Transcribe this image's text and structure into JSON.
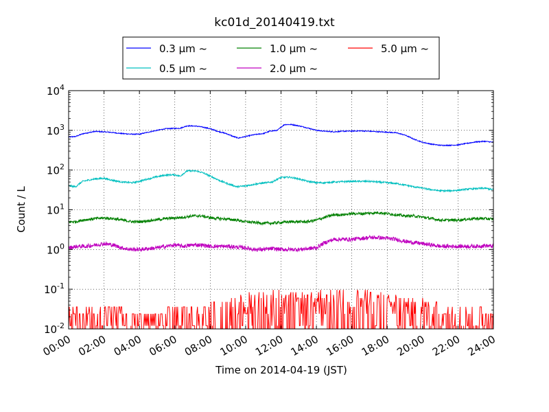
{
  "chart_data": {
    "type": "line",
    "title": "kc01d_20140419.txt",
    "xlabel": "Time on 2014-04-19 (JST)",
    "ylabel": "Count / L",
    "x_range_hours": [
      0,
      24
    ],
    "x_ticks": [
      "00:00",
      "02:00",
      "04:00",
      "06:00",
      "08:00",
      "10:00",
      "12:00",
      "14:00",
      "16:00",
      "18:00",
      "20:00",
      "22:00",
      "24:00"
    ],
    "y_scale": "log",
    "y_range": [
      0.01,
      10000
    ],
    "y_ticks": [
      {
        "base": "10",
        "exp": "-2",
        "value": 0.01
      },
      {
        "base": "10",
        "exp": "-1",
        "value": 0.1
      },
      {
        "base": "10",
        "exp": "0",
        "value": 1
      },
      {
        "base": "10",
        "exp": "1",
        "value": 10
      },
      {
        "base": "10",
        "exp": "2",
        "value": 100
      },
      {
        "base": "10",
        "exp": "3",
        "value": 1000
      },
      {
        "base": "10",
        "exp": "4",
        "value": 10000
      }
    ],
    "grid": true,
    "legend_placement": "top-center-outside",
    "series": [
      {
        "name": "0.3 μm ~",
        "color": "#0000ff",
        "noise": 0.012,
        "spikes": false,
        "x": [
          0,
          0.4,
          0.8,
          1.5,
          2.3,
          3.0,
          3.6,
          4.0,
          4.5,
          5.0,
          5.5,
          6.0,
          6.3,
          6.7,
          7.2,
          7.6,
          8.0,
          8.4,
          8.9,
          9.3,
          9.6,
          10.0,
          10.5,
          11.0,
          11.4,
          11.8,
          12.2,
          12.6,
          13.0,
          13.5,
          14.0,
          14.5,
          15.0,
          15.5,
          16.0,
          16.5,
          17.0,
          17.5,
          18.0,
          18.5,
          19.0,
          19.5,
          20.0,
          20.5,
          21.0,
          21.5,
          22.0,
          22.5,
          23.0,
          23.5,
          24.0
        ],
        "y": [
          680,
          700,
          820,
          940,
          900,
          830,
          800,
          800,
          900,
          1000,
          1100,
          1120,
          1130,
          1300,
          1280,
          1200,
          1100,
          950,
          830,
          700,
          640,
          700,
          780,
          830,
          960,
          1000,
          1400,
          1400,
          1300,
          1150,
          1000,
          950,
          920,
          950,
          960,
          970,
          950,
          920,
          900,
          870,
          760,
          600,
          500,
          450,
          420,
          420,
          430,
          470,
          510,
          530,
          500
        ]
      },
      {
        "name": "0.5 μm ~",
        "color": "#00bfbf",
        "noise": 0.02,
        "spikes": false,
        "x": [
          0,
          0.4,
          0.8,
          1.5,
          2.0,
          2.5,
          3.0,
          3.6,
          4.0,
          4.5,
          5.0,
          5.5,
          6.0,
          6.3,
          6.7,
          7.2,
          7.6,
          8.0,
          8.5,
          9.0,
          9.5,
          10.0,
          10.5,
          11.0,
          11.5,
          12.0,
          12.5,
          13.0,
          13.5,
          14.0,
          14.5,
          15.0,
          16.0,
          17.0,
          18.0,
          18.5,
          19.0,
          19.5,
          20.0,
          20.5,
          21.0,
          21.5,
          22.0,
          22.5,
          23.0,
          23.5,
          24.0
        ],
        "y": [
          40,
          38,
          52,
          60,
          62,
          55,
          50,
          48,
          52,
          60,
          68,
          75,
          76,
          70,
          95,
          95,
          85,
          70,
          55,
          45,
          38,
          40,
          44,
          47,
          50,
          65,
          66,
          60,
          52,
          48,
          48,
          50,
          52,
          52,
          48,
          46,
          42,
          38,
          35,
          32,
          30,
          30,
          31,
          33,
          34,
          35,
          32
        ]
      },
      {
        "name": "1.0 μm ~",
        "color": "#008000",
        "noise": 0.035,
        "spikes": false,
        "x": [
          0,
          0.4,
          0.8,
          1.5,
          2.0,
          2.5,
          3.0,
          3.6,
          4.0,
          4.5,
          5.0,
          5.5,
          6.0,
          6.5,
          7.0,
          7.5,
          8.0,
          8.5,
          9.0,
          9.5,
          10.0,
          10.5,
          11.0,
          11.5,
          12.0,
          12.5,
          13.0,
          13.5,
          14.0,
          14.5,
          15.0,
          15.5,
          16.0,
          16.5,
          17.0,
          17.5,
          18.0,
          18.5,
          19.0,
          19.5,
          20.0,
          20.5,
          21.0,
          21.5,
          22.0,
          22.5,
          23.0,
          23.5,
          24.0
        ],
        "y": [
          5,
          5,
          5.5,
          6,
          6.2,
          6,
          5.5,
          5,
          5,
          5.3,
          5.6,
          6,
          6.2,
          6.5,
          7,
          7,
          6.3,
          6,
          5.8,
          5.5,
          5,
          4.8,
          4.6,
          4.6,
          4.8,
          5,
          5,
          5,
          5.5,
          6.5,
          7.5,
          7.5,
          8,
          8,
          8.2,
          8.5,
          8,
          7.5,
          7,
          7,
          6.5,
          6,
          5.5,
          5.5,
          5.5,
          5.8,
          6,
          6,
          5.8
        ]
      },
      {
        "name": "2.0 μm ~",
        "color": "#bf00bf",
        "noise": 0.05,
        "spikes": false,
        "x": [
          0,
          0.5,
          1.0,
          1.5,
          2.0,
          2.5,
          3.0,
          3.5,
          4.0,
          4.5,
          5.0,
          5.5,
          6.0,
          6.5,
          7.0,
          7.5,
          8.0,
          8.5,
          9.0,
          9.5,
          10.0,
          10.5,
          11.0,
          11.5,
          12.0,
          12.5,
          13.0,
          13.5,
          14.0,
          14.5,
          15.0,
          15.5,
          16.0,
          16.5,
          17.0,
          17.5,
          18.0,
          18.5,
          19.0,
          19.5,
          20.0,
          20.5,
          21.0,
          21.5,
          22.0,
          22.5,
          23.0,
          23.5,
          24.0
        ],
        "y": [
          1.1,
          1.2,
          1.2,
          1.3,
          1.4,
          1.3,
          1.1,
          1.0,
          1.0,
          1.05,
          1.1,
          1.2,
          1.3,
          1.2,
          1.3,
          1.3,
          1.2,
          1.2,
          1.2,
          1.15,
          1.1,
          1.0,
          1.0,
          1.05,
          1.0,
          1.0,
          1.0,
          1.05,
          1.1,
          1.5,
          1.8,
          1.8,
          1.8,
          1.9,
          2.0,
          2.0,
          1.9,
          1.8,
          1.6,
          1.5,
          1.4,
          1.3,
          1.2,
          1.2,
          1.2,
          1.2,
          1.2,
          1.25,
          1.2
        ]
      },
      {
        "name": "5.0 μm ~",
        "color": "#ff0000",
        "noise": 0,
        "spikes": true,
        "spike_levels": [
          0.012,
          0.024,
          0.036,
          0.048,
          0.06,
          0.072,
          0.084,
          0.096,
          0.108
        ],
        "activity_x": [
          0,
          1.5,
          3.0,
          4.0,
          5.5,
          7.0,
          8.0,
          9.0,
          10.0,
          11.0,
          12.0,
          13.0,
          14.0,
          15.0,
          16.0,
          17.0,
          18.0,
          19.0,
          20.0,
          21.0,
          22.0,
          23.0,
          24.0
        ],
        "activity_max": [
          0.036,
          0.036,
          0.036,
          0.024,
          0.036,
          0.036,
          0.048,
          0.06,
          0.084,
          0.096,
          0.096,
          0.084,
          0.096,
          0.108,
          0.108,
          0.096,
          0.084,
          0.06,
          0.06,
          0.048,
          0.036,
          0.036,
          0.036
        ]
      }
    ]
  }
}
